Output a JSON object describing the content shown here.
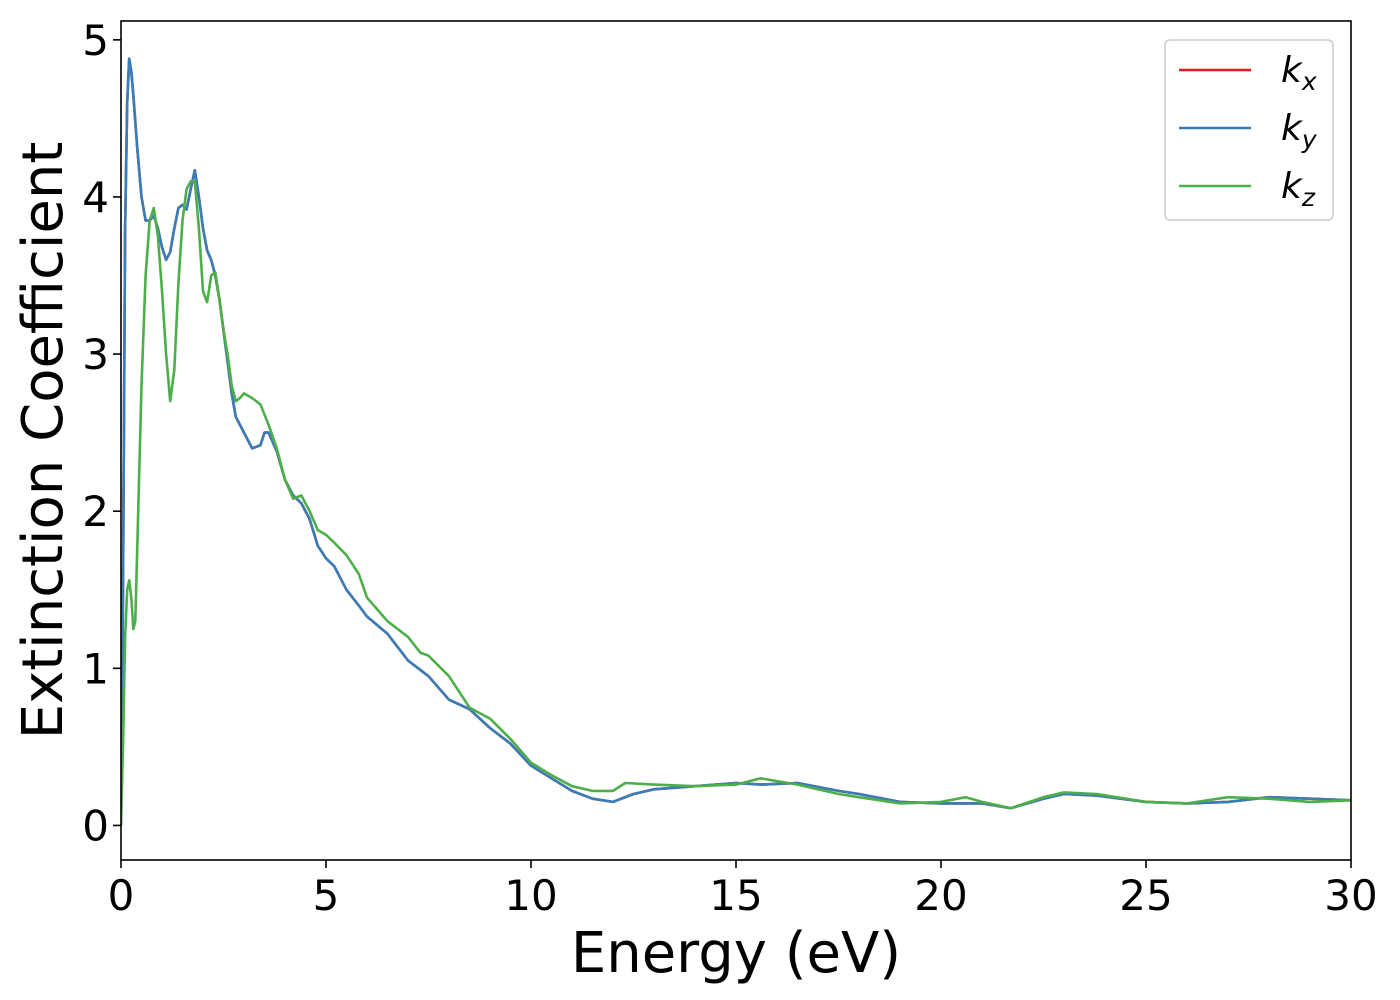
{
  "chart_data": {
    "type": "line",
    "title": "",
    "xlabel": "Energy (eV)",
    "ylabel": "Extinction Coefficient",
    "xlim": [
      0,
      30
    ],
    "ylim": [
      -0.22,
      5.12
    ],
    "xticks": [
      0,
      5,
      10,
      15,
      20,
      25,
      30
    ],
    "yticks": [
      0,
      1,
      2,
      3,
      4,
      5
    ],
    "grid": false,
    "legend_position": "top-right",
    "series": [
      {
        "name": "k",
        "subscript": "x",
        "color": "#e41a1c",
        "x": [
          0,
          0.05,
          0.1,
          0.15,
          0.2,
          0.25,
          0.3,
          0.4,
          0.5,
          0.6,
          0.7,
          0.8,
          0.9,
          1.0,
          1.1,
          1.2,
          1.3,
          1.4,
          1.5,
          1.6,
          1.7,
          1.8,
          1.9,
          2.0,
          2.1,
          2.2,
          2.3,
          2.4,
          2.5,
          2.6,
          2.7,
          2.8,
          3.0,
          3.2,
          3.4,
          3.5,
          3.6,
          3.8,
          4.0,
          4.2,
          4.4,
          4.6,
          4.8,
          5.0,
          5.2,
          5.5,
          5.8,
          6.0,
          6.5,
          7.0,
          7.5,
          8.0,
          8.5,
          9.0,
          9.5,
          10.0,
          10.5,
          11.0,
          11.5,
          12.0,
          12.5,
          13.0,
          14.0,
          15.0,
          15.6,
          16.5,
          17.5,
          18.0,
          19.0,
          20.0,
          21.0,
          21.7,
          22.5,
          23.0,
          23.8,
          25.0,
          26.0,
          27.0,
          28.0,
          29.0,
          30.0
        ],
        "values": [
          0.0,
          1.5,
          3.8,
          4.6,
          4.88,
          4.8,
          4.65,
          4.3,
          4.0,
          3.85,
          3.85,
          3.88,
          3.8,
          3.68,
          3.6,
          3.65,
          3.8,
          3.93,
          3.95,
          3.92,
          4.05,
          4.17,
          4.0,
          3.8,
          3.66,
          3.6,
          3.5,
          3.35,
          3.15,
          2.95,
          2.75,
          2.6,
          2.5,
          2.4,
          2.42,
          2.5,
          2.5,
          2.38,
          2.2,
          2.1,
          2.05,
          1.95,
          1.78,
          1.7,
          1.65,
          1.5,
          1.4,
          1.33,
          1.22,
          1.05,
          0.95,
          0.8,
          0.74,
          0.62,
          0.52,
          0.38,
          0.3,
          0.22,
          0.17,
          0.15,
          0.2,
          0.23,
          0.25,
          0.27,
          0.26,
          0.27,
          0.22,
          0.2,
          0.15,
          0.14,
          0.14,
          0.11,
          0.17,
          0.2,
          0.19,
          0.15,
          0.14,
          0.15,
          0.18,
          0.17,
          0.16
        ]
      },
      {
        "name": "k",
        "subscript": "y",
        "color": "#377eb8",
        "x": [
          0,
          0.05,
          0.1,
          0.15,
          0.2,
          0.25,
          0.3,
          0.4,
          0.5,
          0.6,
          0.7,
          0.8,
          0.9,
          1.0,
          1.1,
          1.2,
          1.3,
          1.4,
          1.5,
          1.6,
          1.7,
          1.8,
          1.9,
          2.0,
          2.1,
          2.2,
          2.3,
          2.4,
          2.5,
          2.6,
          2.7,
          2.8,
          3.0,
          3.2,
          3.4,
          3.5,
          3.6,
          3.8,
          4.0,
          4.2,
          4.4,
          4.6,
          4.8,
          5.0,
          5.2,
          5.5,
          5.8,
          6.0,
          6.5,
          7.0,
          7.5,
          8.0,
          8.5,
          9.0,
          9.5,
          10.0,
          10.5,
          11.0,
          11.5,
          12.0,
          12.5,
          13.0,
          14.0,
          15.0,
          15.6,
          16.5,
          17.5,
          18.0,
          19.0,
          20.0,
          21.0,
          21.7,
          22.5,
          23.0,
          23.8,
          25.0,
          26.0,
          27.0,
          28.0,
          29.0,
          30.0
        ],
        "values": [
          0.0,
          1.5,
          3.8,
          4.6,
          4.88,
          4.8,
          4.65,
          4.3,
          4.0,
          3.85,
          3.85,
          3.88,
          3.8,
          3.68,
          3.6,
          3.65,
          3.8,
          3.93,
          3.95,
          3.92,
          4.05,
          4.17,
          4.0,
          3.8,
          3.66,
          3.6,
          3.5,
          3.35,
          3.15,
          2.95,
          2.75,
          2.6,
          2.5,
          2.4,
          2.42,
          2.5,
          2.5,
          2.38,
          2.2,
          2.1,
          2.05,
          1.95,
          1.78,
          1.7,
          1.65,
          1.5,
          1.4,
          1.33,
          1.22,
          1.05,
          0.95,
          0.8,
          0.74,
          0.62,
          0.52,
          0.38,
          0.3,
          0.22,
          0.17,
          0.15,
          0.2,
          0.23,
          0.25,
          0.27,
          0.26,
          0.27,
          0.22,
          0.2,
          0.15,
          0.14,
          0.14,
          0.11,
          0.17,
          0.2,
          0.19,
          0.15,
          0.14,
          0.15,
          0.18,
          0.17,
          0.16
        ]
      },
      {
        "name": "k",
        "subscript": "z",
        "color": "#4daf4a",
        "x": [
          0,
          0.05,
          0.1,
          0.15,
          0.2,
          0.25,
          0.3,
          0.35,
          0.4,
          0.5,
          0.6,
          0.7,
          0.8,
          0.9,
          1.0,
          1.1,
          1.2,
          1.3,
          1.4,
          1.5,
          1.6,
          1.7,
          1.8,
          1.9,
          2.0,
          2.1,
          2.2,
          2.3,
          2.4,
          2.5,
          2.6,
          2.7,
          2.8,
          2.9,
          3.0,
          3.2,
          3.4,
          3.6,
          3.8,
          4.0,
          4.2,
          4.4,
          4.6,
          4.8,
          5.0,
          5.2,
          5.5,
          5.8,
          6.0,
          6.5,
          7.0,
          7.3,
          7.5,
          8.0,
          8.5,
          9.0,
          9.5,
          10.0,
          10.5,
          11.0,
          11.5,
          12.0,
          12.3,
          13.0,
          14.0,
          15.0,
          15.6,
          16.5,
          17.5,
          18.0,
          19.0,
          20.0,
          20.6,
          21.0,
          21.7,
          22.5,
          23.0,
          23.8,
          25.0,
          26.0,
          27.0,
          28.0,
          29.0,
          30.0
        ],
        "values": [
          0.0,
          0.5,
          1.2,
          1.5,
          1.56,
          1.45,
          1.25,
          1.3,
          1.8,
          2.8,
          3.5,
          3.85,
          3.93,
          3.75,
          3.4,
          3.0,
          2.7,
          2.9,
          3.45,
          3.85,
          4.05,
          4.1,
          4.1,
          3.8,
          3.4,
          3.33,
          3.5,
          3.52,
          3.35,
          3.15,
          3.0,
          2.8,
          2.7,
          2.72,
          2.75,
          2.72,
          2.68,
          2.55,
          2.4,
          2.2,
          2.08,
          2.1,
          2.0,
          1.88,
          1.85,
          1.8,
          1.72,
          1.6,
          1.45,
          1.3,
          1.2,
          1.1,
          1.08,
          0.95,
          0.75,
          0.68,
          0.55,
          0.4,
          0.32,
          0.25,
          0.22,
          0.22,
          0.27,
          0.26,
          0.25,
          0.26,
          0.3,
          0.26,
          0.2,
          0.18,
          0.14,
          0.15,
          0.18,
          0.15,
          0.11,
          0.18,
          0.21,
          0.2,
          0.15,
          0.14,
          0.18,
          0.17,
          0.15,
          0.16
        ]
      }
    ]
  }
}
